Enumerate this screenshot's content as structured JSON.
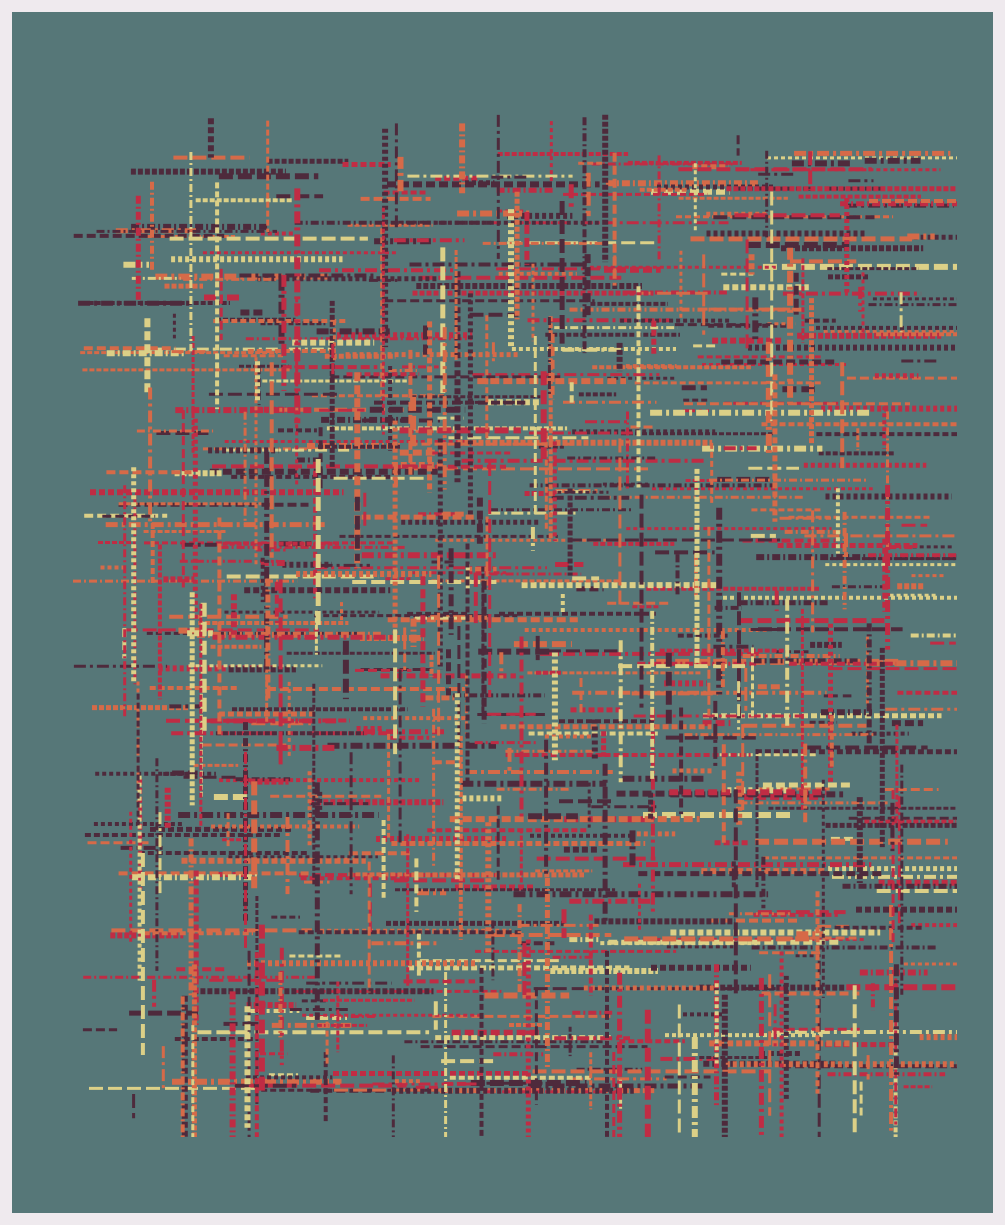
{
  "artwork": {
    "kind": "generative dashed line grid",
    "background_color": "#567778",
    "frame_color": "#efeaee",
    "palette": [
      "#4e2a3c",
      "#c02c44",
      "#d66a48",
      "#dcd087"
    ],
    "palette_names": [
      "plum",
      "crimson",
      "coral",
      "sand"
    ]
  }
}
